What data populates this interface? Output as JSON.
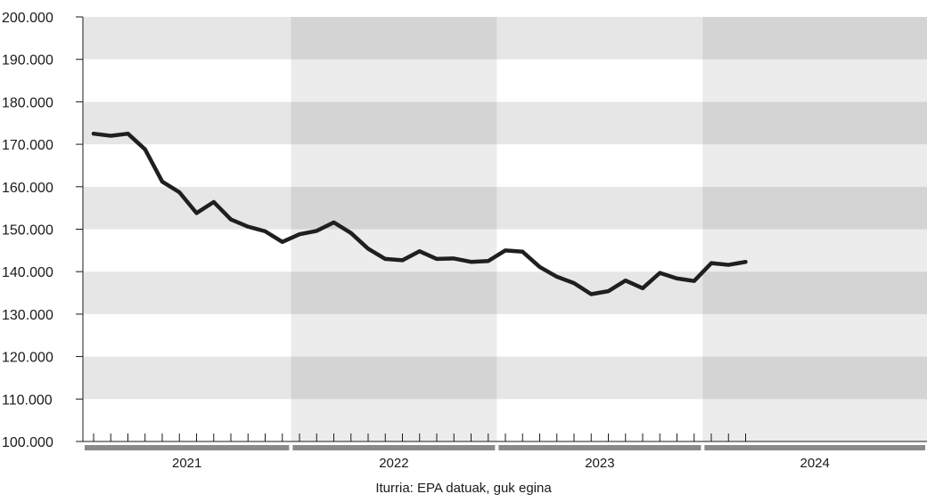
{
  "chart_data": {
    "type": "line",
    "title": "",
    "xlabel": "",
    "ylabel": "",
    "ylim": [
      100000,
      200000
    ],
    "yticks": [
      100000,
      110000,
      120000,
      130000,
      140000,
      150000,
      160000,
      170000,
      180000,
      190000,
      200000
    ],
    "ytick_labels": [
      "100.000",
      "110.000",
      "120.000",
      "130.000",
      "140.000",
      "150.000",
      "160.000",
      "170.000",
      "180.000",
      "190.000",
      "200.000"
    ],
    "grid": "horizontal alternating bands",
    "years": [
      {
        "label": "2021",
        "months": 12
      },
      {
        "label": "2022",
        "months": 12
      },
      {
        "label": "2023",
        "months": 12
      },
      {
        "label": "2024",
        "months": 3
      }
    ],
    "series": [
      {
        "values": [
          172500,
          172000,
          172500,
          168800,
          161200,
          158700,
          153800,
          156400,
          152300,
          150600,
          149500,
          147000,
          148800,
          149600,
          151600,
          149100,
          145400,
          143000,
          142700,
          144800,
          143000,
          143100,
          142300,
          142500,
          145000,
          144700,
          141100,
          138800,
          137300,
          134700,
          135400,
          137900,
          136100,
          139700,
          138400,
          137800,
          142000,
          141600,
          142300
        ],
        "color": "#1f1f1f"
      }
    ],
    "source": "Iturria: EPA datuak, guk egina"
  }
}
